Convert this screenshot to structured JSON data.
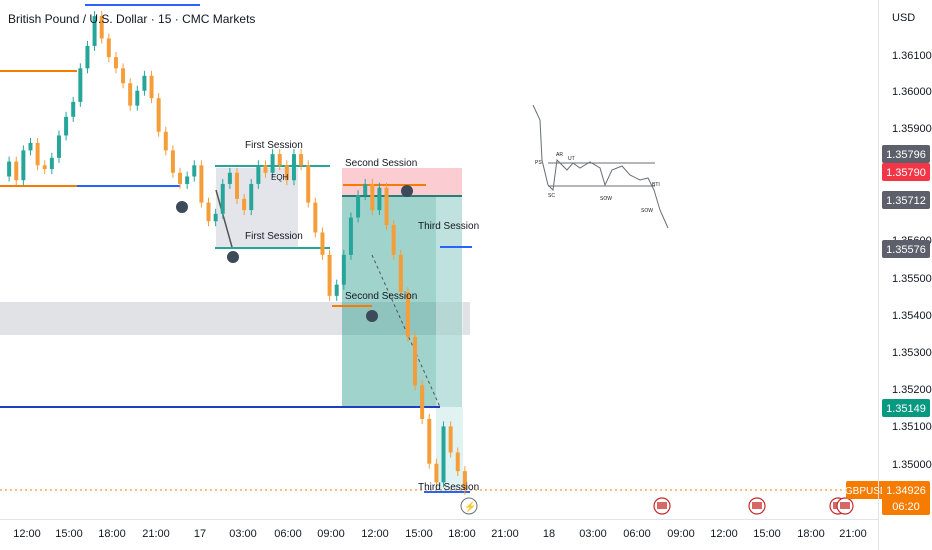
{
  "header": {
    "title": "British Pound / U.S. Dollar · 15 · CMC Markets"
  },
  "axis": {
    "currency": "USD",
    "price_ticks": [
      "1.36100",
      "1.36000",
      "1.35900",
      "1.35600",
      "1.35500",
      "1.35400",
      "1.35300",
      "1.35200",
      "1.35100",
      "1.35000"
    ],
    "time_ticks": [
      "12:00",
      "15:00",
      "18:00",
      "21:00",
      "17",
      "03:00",
      "06:00",
      "09:00",
      "12:00",
      "15:00",
      "18:00",
      "21:00",
      "18",
      "03:00",
      "06:00",
      "09:00",
      "12:00",
      "15:00",
      "18:00",
      "21:00"
    ]
  },
  "price_labels": [
    {
      "value": "1.35796",
      "bg": "#5d606b"
    },
    {
      "value": "1.35790",
      "bg": "#f23645"
    },
    {
      "value": "1.35712",
      "bg": "#5d606b"
    },
    {
      "value": "1.35576",
      "bg": "#5d606b"
    },
    {
      "value": "1.35149",
      "bg": "#089981"
    }
  ],
  "current_price": {
    "symbol": "GBPUSD",
    "value": "1.34926",
    "countdown": "06:20",
    "bg": "#f57c00"
  },
  "annotations": {
    "first_session_top": "First Session",
    "first_session_bottom": "First Session",
    "second_session_top": "Second Session",
    "second_session_bottom": "Second Session",
    "third_session_top": "Third Session",
    "third_session_bottom": "Third Session",
    "eqh": "EQH"
  },
  "schematic": {
    "labels": [
      "PS",
      "AR",
      "UT",
      "SC",
      "SOW",
      "BTI",
      "SOW"
    ]
  },
  "colors": {
    "up": "#26a69a",
    "down": "#ef5350",
    "candle": "#f59d39",
    "orange": "#f57c00",
    "blue": "#2962ff",
    "teal": "#26a69a"
  },
  "chart_data": {
    "type": "candlestick",
    "title": "British Pound / U.S. Dollar · 15 · CMC Markets",
    "ylim": [
      1.3488,
      1.3623
    ],
    "series": [
      {
        "name": "GBPUSD",
        "close_path": [
          1.3577,
          1.3581,
          1.3576,
          1.3584,
          1.3586,
          1.358,
          1.3579,
          1.3582,
          1.3588,
          1.3593,
          1.3597,
          1.3606,
          1.3612,
          1.362,
          1.3614,
          1.3609,
          1.3606,
          1.3602,
          1.3596,
          1.36,
          1.3604,
          1.3598,
          1.3589,
          1.3584,
          1.3578,
          1.3575,
          1.3577,
          1.358,
          1.357,
          1.3565,
          1.3567,
          1.3575,
          1.3578,
          1.3571,
          1.3568,
          1.3575,
          1.358,
          1.3578,
          1.3583,
          1.358,
          1.3576,
          1.3583,
          1.358,
          1.357,
          1.3562,
          1.3556,
          1.3545,
          1.3548,
          1.3556,
          1.3566,
          1.3572,
          1.3575,
          1.3568,
          1.3574,
          1.3564,
          1.3556,
          1.3546,
          1.3534,
          1.3521,
          1.3512,
          1.35,
          1.3495,
          1.351,
          1.3503,
          1.3498,
          1.3493
        ]
      }
    ],
    "levels": [
      {
        "name": "orange-high-left",
        "value": 1.36075
      },
      {
        "name": "orange-low-left",
        "value": 1.3576
      },
      {
        "name": "blue-low-left",
        "value": 1.3576
      },
      {
        "name": "second-session-high",
        "value": 1.3577
      },
      {
        "name": "third-session-blue",
        "value": 1.35576
      },
      {
        "name": "blue-lower",
        "value": 1.35149
      }
    ],
    "gridlines": false,
    "legend": "none"
  }
}
